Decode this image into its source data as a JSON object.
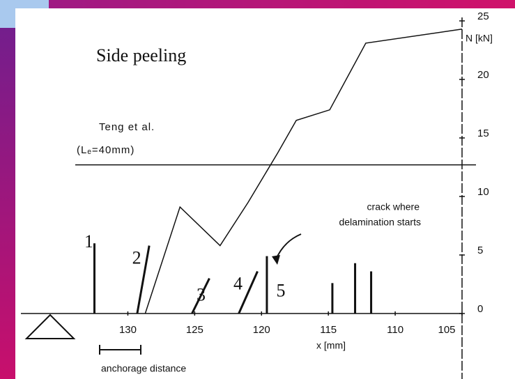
{
  "chart_data": {
    "type": "line",
    "title": "Side peeling",
    "xlabel": "x [mm]",
    "ylabel": "N [kN]",
    "x": [
      128.7,
      126.1,
      123.1,
      121.0,
      118.8,
      117.4,
      114.9,
      112.2,
      105.0
    ],
    "values": [
      0,
      9.1,
      5.8,
      9.5,
      13.7,
      16.5,
      17.4,
      23.1,
      24.3
    ],
    "color": "#111111",
    "xlim": [
      138,
      105
    ],
    "ylim": [
      0,
      25
    ],
    "xticks": [
      130,
      125,
      120,
      115,
      110,
      105
    ],
    "yticks": [
      0,
      5,
      10,
      15,
      20,
      25
    ],
    "reference_line": {
      "value": 12.7,
      "label": [
        "Teng et al.",
        "(Lₑ=40mm)"
      ]
    },
    "cracks": [
      {
        "label": "1",
        "x": [
          132.5,
          132.5
        ],
        "value": 6.0
      },
      {
        "label": "2",
        "x": [
          129.3,
          128.4
        ],
        "value": 5.8
      },
      {
        "label": "3",
        "x": [
          125.2,
          123.9
        ],
        "value": 3.0
      },
      {
        "label": "4",
        "x": [
          121.7,
          120.3
        ],
        "value": 3.6
      },
      {
        "label": "5",
        "x": [
          119.6,
          119.6
        ],
        "value": 4.9
      },
      {
        "label": null,
        "x": [
          114.7,
          114.7
        ],
        "value": 2.6
      },
      {
        "label": null,
        "x": [
          113.0,
          113.0
        ],
        "value": 4.3
      },
      {
        "label": null,
        "x": [
          111.8,
          111.8
        ],
        "value": 3.6
      }
    ],
    "annotations": [
      "crack where",
      "delamination starts",
      "anchorage distance"
    ]
  }
}
